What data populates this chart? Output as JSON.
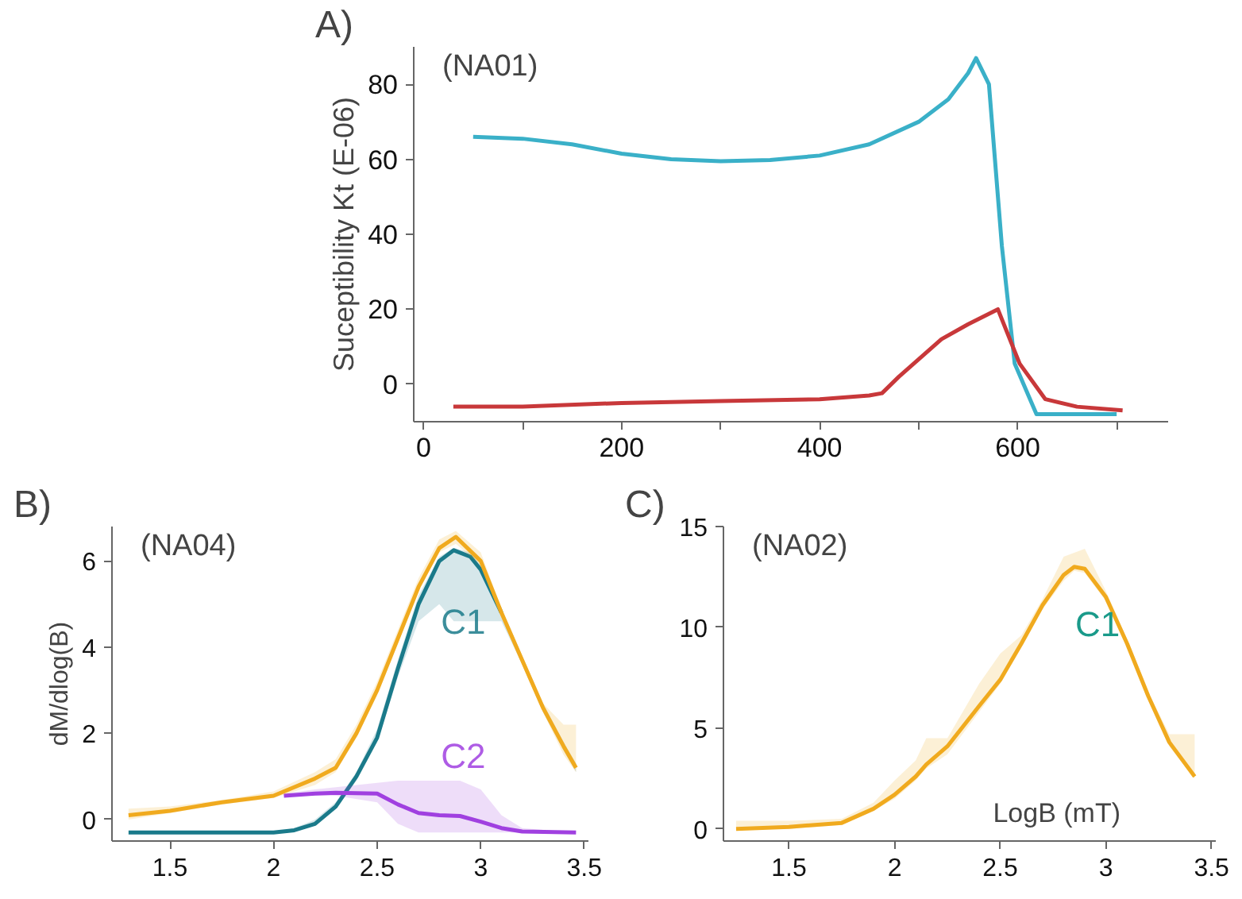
{
  "chart_data": [
    {
      "type": "line",
      "title": "A)",
      "subtitle": "(NA01)",
      "ylabel": "Suceptibility Kt (E-06)",
      "xlim": [
        -10,
        752
      ],
      "ylim": [
        -10,
        90
      ],
      "xticks": [
        0,
        {
          "value": 100,
          "label": null
        },
        200,
        {
          "value": 300,
          "label": null
        },
        400,
        {
          "value": 500,
          "label": null
        },
        600,
        {
          "value": 700,
          "label": null
        }
      ],
      "yticks": [
        0,
        20,
        40,
        60,
        80
      ],
      "series": [
        {
          "color": "#3ab0c8",
          "x": [
            50,
            100,
            150,
            200,
            250,
            300,
            350,
            400,
            450,
            500,
            530,
            550,
            558,
            571,
            584,
            597,
            619,
            650,
            700
          ],
          "values": [
            66,
            65.5,
            64,
            61.5,
            60,
            59.5,
            59.8,
            61,
            64,
            70,
            76,
            83,
            87,
            80,
            37,
            5.5,
            -8,
            -8,
            -8
          ]
        },
        {
          "color": "#c8383a",
          "x": [
            30,
            100,
            200,
            300,
            400,
            450,
            463,
            480,
            523,
            550,
            580,
            602,
            628,
            660,
            706
          ],
          "values": [
            -6,
            -6,
            -5,
            -4.5,
            -4,
            -3,
            -2.4,
            2,
            12,
            16,
            20,
            5.5,
            -4,
            -6,
            -7
          ]
        }
      ]
    },
    {
      "type": "line",
      "title": "B)",
      "subtitle": "(NA04)",
      "ylabel": "dM/dlog(B)",
      "xlim": [
        1.22,
        3.52
      ],
      "ylim": [
        -0.5,
        6.8
      ],
      "xticks": [
        1.5,
        2.0,
        2.5,
        3.0,
        3.5
      ],
      "yticks": [
        0,
        2,
        4,
        6
      ],
      "series": [
        {
          "name": "C1",
          "color": "#1a7a8a",
          "x": [
            1.3,
            2.0,
            2.1,
            2.2,
            2.3,
            2.4,
            2.5,
            2.6,
            2.7,
            2.8,
            2.87,
            2.95,
            3.0,
            3.1,
            3.2,
            3.3,
            3.4,
            3.46
          ],
          "values": [
            -0.3,
            -0.3,
            -0.25,
            -0.1,
            0.3,
            1.0,
            1.9,
            3.5,
            5.0,
            6.0,
            6.25,
            6.1,
            5.8,
            4.8,
            null,
            null,
            null,
            null
          ],
          "lower": [
            -0.3,
            -0.3,
            -0.25,
            -0.1,
            0.25,
            0.9,
            1.8,
            3.3,
            4.6,
            5.0,
            4.6,
            4.6,
            4.6,
            4.6,
            3.6,
            2.5,
            1.6,
            1.1
          ],
          "upper": [
            -0.3,
            -0.3,
            -0.2,
            0.0,
            0.4,
            1.1,
            2.1,
            3.7,
            5.2,
            6.1,
            6.3,
            6.2,
            5.9,
            4.9,
            3.8,
            2.7,
            1.8,
            1.3
          ]
        },
        {
          "name": "C2",
          "color": "#a040e0",
          "x": [
            2.05,
            2.2,
            2.3,
            2.5,
            2.6,
            2.7,
            2.8,
            2.9,
            3.0,
            3.1,
            3.2,
            3.46
          ],
          "values": [
            0.55,
            0.6,
            0.62,
            0.6,
            0.35,
            0.15,
            0.1,
            0.08,
            -0.05,
            -0.2,
            -0.28,
            -0.3
          ],
          "lower": [
            0.55,
            0.55,
            0.55,
            0.4,
            -0.1,
            -0.3,
            -0.3,
            -0.3,
            -0.3,
            -0.3,
            -0.3,
            -0.3
          ],
          "upper": [
            0.6,
            0.7,
            0.75,
            0.85,
            0.9,
            0.9,
            0.9,
            0.9,
            0.7,
            0.1,
            -0.2,
            -0.3
          ]
        },
        {
          "color": "#f0aa1e",
          "x": [
            1.3,
            1.5,
            1.75,
            2.0,
            2.2,
            2.3,
            2.4,
            2.5,
            2.6,
            2.7,
            2.8,
            2.88,
            3.0,
            3.1,
            3.2,
            3.3,
            3.4,
            3.46
          ],
          "values": [
            0.1,
            0.2,
            0.4,
            0.55,
            0.95,
            1.2,
            2.0,
            3.0,
            4.2,
            5.4,
            6.3,
            6.56,
            6.0,
            4.8,
            3.7,
            2.6,
            1.7,
            1.2
          ],
          "lower": [
            0.0,
            0.15,
            0.35,
            0.5,
            0.8,
            1.1,
            1.9,
            2.9,
            4.1,
            5.3,
            6.2,
            6.4,
            5.9,
            4.7,
            3.6,
            2.5,
            1.5,
            1.1
          ],
          "upper": [
            0.25,
            0.3,
            0.45,
            0.65,
            1.1,
            1.4,
            2.2,
            3.2,
            4.4,
            5.6,
            6.5,
            6.7,
            6.2,
            4.9,
            3.8,
            2.7,
            2.2,
            2.2
          ]
        }
      ]
    },
    {
      "type": "line",
      "title": "C)",
      "subtitle": "(NA02)",
      "xlabel": "LogB (mT)",
      "xlim": [
        1.19,
        3.52
      ],
      "ylim": [
        -0.6,
        15
      ],
      "xticks": [
        1.5,
        2.0,
        2.5,
        3.0,
        3.5
      ],
      "yticks": [
        0,
        5,
        10,
        15
      ],
      "annotations": [
        "C1"
      ],
      "series": [
        {
          "color": "#f0aa1e",
          "x": [
            1.25,
            1.5,
            1.75,
            1.9,
            2.0,
            2.1,
            2.15,
            2.25,
            2.4,
            2.5,
            2.6,
            2.7,
            2.8,
            2.85,
            2.9,
            3.0,
            3.1,
            3.2,
            3.3,
            3.42
          ],
          "values": [
            0.0,
            0.1,
            0.3,
            1.0,
            1.7,
            2.6,
            3.2,
            4.1,
            6.1,
            7.4,
            9.2,
            11.1,
            12.6,
            13.0,
            12.9,
            11.5,
            9.2,
            6.6,
            4.3,
            2.6
          ],
          "lower": [
            0.0,
            0.0,
            0.2,
            0.9,
            1.5,
            2.4,
            3.0,
            3.7,
            5.8,
            7.2,
            9.0,
            10.9,
            12.3,
            12.8,
            12.7,
            11.3,
            9.0,
            6.4,
            4.1,
            2.5
          ],
          "upper": [
            0.4,
            0.4,
            0.5,
            1.3,
            2.4,
            3.4,
            4.5,
            4.5,
            7.2,
            8.7,
            9.6,
            11.4,
            13.5,
            13.7,
            13.9,
            11.8,
            9.4,
            6.8,
            4.7,
            4.7
          ]
        }
      ]
    }
  ]
}
